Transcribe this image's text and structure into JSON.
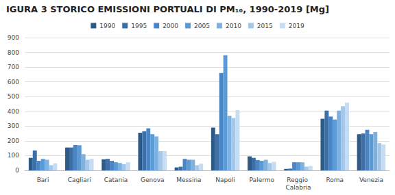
{
  "chart_data": {
    "type": "bar",
    "title": "IGURA 3 STORICO EMISSIONI PORTUALI DI PM₁₀, 1990-2019 [Mg]",
    "categories": [
      "Bari",
      "Cagliari",
      "Catania",
      "Genova",
      "Messina",
      "Napoli",
      "Palermo",
      "Reggio Calabria",
      "Roma",
      "Venezia"
    ],
    "series": [
      {
        "name": "1990",
        "color": "#2e5a87",
        "values": [
          85,
          155,
          75,
          255,
          20,
          290,
          95,
          10,
          350,
          245
        ]
      },
      {
        "name": "1995",
        "color": "#3b6fa6",
        "values": [
          135,
          155,
          78,
          265,
          25,
          245,
          85,
          12,
          405,
          250
        ]
      },
      {
        "name": "2000",
        "color": "#4a86c5",
        "values": [
          65,
          172,
          65,
          285,
          78,
          660,
          70,
          55,
          365,
          275
        ]
      },
      {
        "name": "2005",
        "color": "#5b9bd5",
        "values": [
          78,
          170,
          55,
          245,
          72,
          780,
          65,
          55,
          345,
          245
        ]
      },
      {
        "name": "2010",
        "color": "#7fb1e0",
        "values": [
          72,
          110,
          50,
          230,
          72,
          370,
          72,
          55,
          405,
          260
        ]
      },
      {
        "name": "2015",
        "color": "#a5c8ea",
        "values": [
          35,
          72,
          42,
          130,
          35,
          355,
          50,
          25,
          435,
          185
        ]
      },
      {
        "name": "2019",
        "color": "#c6dcf2",
        "values": [
          48,
          78,
          55,
          130,
          45,
          408,
          58,
          30,
          460,
          175
        ]
      }
    ],
    "ylim": [
      0,
      900
    ],
    "yticks": [
      0,
      100,
      200,
      300,
      400,
      500,
      600,
      700,
      800,
      900
    ],
    "grid": true,
    "legend": "top"
  }
}
